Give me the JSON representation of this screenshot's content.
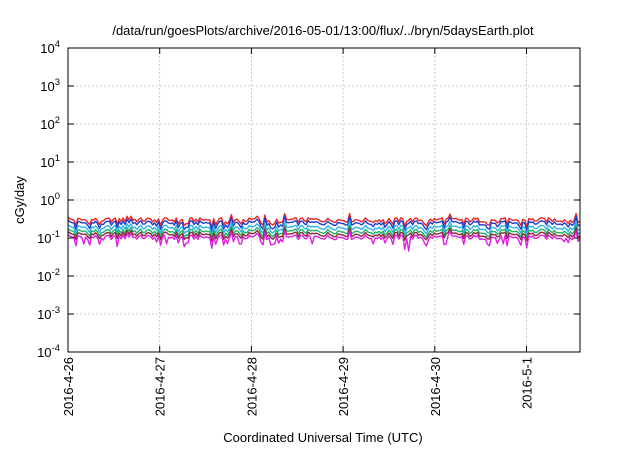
{
  "chart_data": {
    "type": "line",
    "title": "/data/run/goesPlots/archive/2016-05-01/13:00/flux/../bryn/5daysEarth.plot",
    "xlabel": "Coordinated Universal Time (UTC)",
    "ylabel": "cGy/day",
    "yscale": "log",
    "ylim": [
      0.0001,
      10000
    ],
    "yticks": [
      {
        "value": 0.0001,
        "base": "10",
        "exp": "-4"
      },
      {
        "value": 0.001,
        "base": "10",
        "exp": "-3"
      },
      {
        "value": 0.01,
        "base": "10",
        "exp": "-2"
      },
      {
        "value": 0.1,
        "base": "10",
        "exp": "-1"
      },
      {
        "value": 1,
        "base": "10",
        "exp": "0"
      },
      {
        "value": 10,
        "base": "10",
        "exp": "1"
      },
      {
        "value": 100,
        "base": "10",
        "exp": "2"
      },
      {
        "value": 1000,
        "base": "10",
        "exp": "3"
      },
      {
        "value": 10000,
        "base": "10",
        "exp": "4"
      }
    ],
    "xlim": [
      "2016-04-26",
      "2016-05-01T14:00"
    ],
    "xticks": [
      {
        "value": "2016-04-26",
        "label": "2016-4-26"
      },
      {
        "value": "2016-04-27",
        "label": "2016-4-27"
      },
      {
        "value": "2016-04-28",
        "label": "2016-4-28"
      },
      {
        "value": "2016-04-29",
        "label": "2016-4-29"
      },
      {
        "value": "2016-04-30",
        "label": "2016-4-30"
      },
      {
        "value": "2016-05-01",
        "label": "2016-5-1"
      }
    ],
    "grid": true,
    "series": [
      {
        "color": "#e8262a",
        "level": 0.3,
        "dip_depth": 0.3,
        "dips": []
      },
      {
        "color": "#1f3dcc",
        "level": 0.25,
        "dip_depth": 0.35,
        "dips": []
      },
      {
        "color": "#2fb3ea",
        "level": 0.19,
        "dip_depth": 0.32,
        "dips": []
      },
      {
        "color": "#1fb36b",
        "level": 0.15,
        "dip_depth": 0.3,
        "dips": []
      },
      {
        "color": "#8a2a3a",
        "level": 0.125,
        "dip_depth": 0.28,
        "dips": []
      },
      {
        "color": "#e020e0",
        "level": 0.105,
        "dip_depth": 0.45,
        "dips": [
          {
            "x": "2016-04-26T04:00",
            "y": 0.07
          },
          {
            "x": "2016-04-26T13:00",
            "y": 0.06
          },
          {
            "x": "2016-04-27T02:00",
            "y": 0.07
          },
          {
            "x": "2016-04-27T21:00",
            "y": 0.07
          },
          {
            "x": "2016-04-28T16:00",
            "y": 0.07
          },
          {
            "x": "2016-04-29T08:00",
            "y": 0.07
          },
          {
            "x": "2016-04-29T16:00",
            "y": 0.05
          },
          {
            "x": "2016-04-29T17:00",
            "y": 0.045
          },
          {
            "x": "2016-04-30T03:00",
            "y": 0.07
          },
          {
            "x": "2016-04-30T18:00",
            "y": 0.07
          },
          {
            "x": "2016-05-01T10:00",
            "y": 0.08
          }
        ]
      }
    ]
  }
}
